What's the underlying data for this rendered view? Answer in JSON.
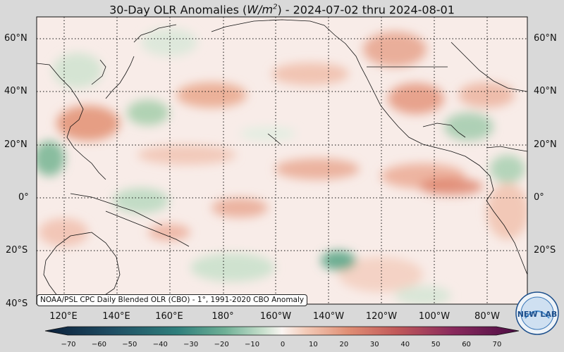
{
  "title": {
    "prefix": "30-Day OLR Anomalies (",
    "units_base": "W/m",
    "units_exp": "2",
    "suffix": ") - 2024-07-02 thru 2024-08-01"
  },
  "lat_labels": [
    "60°N",
    "40°N",
    "20°N",
    "0°",
    "20°S",
    "40°S"
  ],
  "lon_labels": [
    "120°E",
    "140°E",
    "160°E",
    "180°",
    "160°W",
    "140°W",
    "120°W",
    "100°W",
    "80°W"
  ],
  "credit": "NOAA/PSL CPC Daily Blended OLR (CBO) - 1°, 1991-2020 CBO Anomaly",
  "colorbar": {
    "ticks": [
      "−70",
      "−60",
      "−50",
      "−40",
      "−30",
      "−20",
      "−10",
      "0",
      "10",
      "20",
      "30",
      "40",
      "50",
      "60",
      "70"
    ],
    "min": -75,
    "max": 75,
    "negative_colors": [
      "#0b1f3a",
      "#1f4d63",
      "#2f7f7c",
      "#5aa58f",
      "#96c7a7",
      "#cfe5d3",
      "#f2f5f1"
    ],
    "positive_colors": [
      "#fbeee8",
      "#f2c5b0",
      "#e29579",
      "#cc6259",
      "#a83e5b",
      "#7a1f5b",
      "#4c0d45"
    ]
  },
  "logo": {
    "text": "NEW LAB",
    "icon": "noaa-psl-logo-icon"
  }
}
